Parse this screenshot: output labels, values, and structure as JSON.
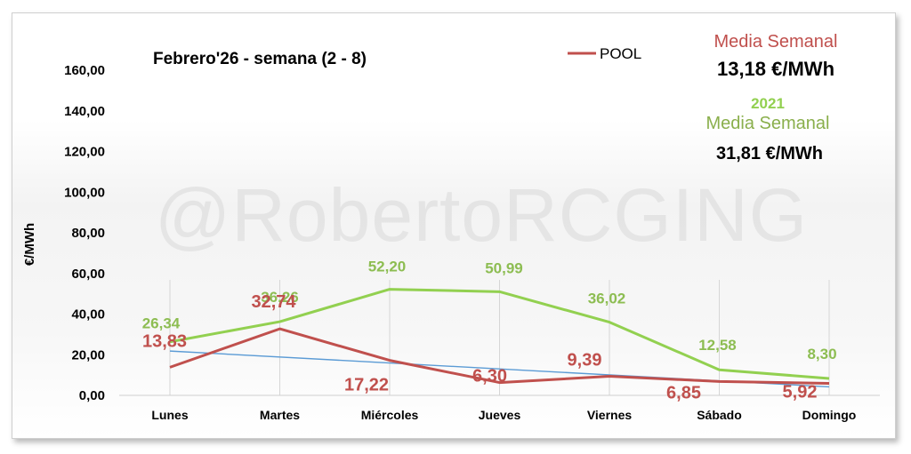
{
  "chart_data": {
    "type": "line",
    "title": "Febrero'26 - semana (2 - 8)",
    "ylabel": "€/MWh",
    "xlabel": "",
    "ylim": [
      0,
      160
    ],
    "yticks": [
      "0,00",
      "20,00",
      "40,00",
      "60,00",
      "80,00",
      "100,00",
      "120,00",
      "140,00",
      "160,00"
    ],
    "categories": [
      "Lunes",
      "Martes",
      "Miércoles",
      "Jueves",
      "Viernes",
      "Sábado",
      "Domingo"
    ],
    "legend_position": "top-center",
    "grid": "vertical",
    "series": [
      {
        "name": "POOL",
        "color": "#c0504d",
        "values": [
          13.83,
          32.74,
          17.22,
          6.3,
          9.39,
          6.85,
          5.92
        ],
        "labels": [
          "13,83",
          "32,74",
          "17,22",
          "6,30",
          "9,39",
          "6,85",
          "5,92"
        ]
      },
      {
        "name": "",
        "color": "#92d050",
        "values": [
          26.34,
          36.26,
          52.2,
          50.99,
          36.02,
          12.58,
          8.3
        ],
        "labels": [
          "26,34",
          "36,26",
          "52,20",
          "50,99",
          "36,02",
          "12,58",
          "8,30"
        ]
      }
    ],
    "trendline": {
      "color": "#5b9bd5",
      "start": 21.8,
      "end": 4.2
    },
    "annotations": {
      "media_label": "Media Semanal",
      "media_value": "13,18 €/MWh",
      "year": "2021",
      "media_label_2": "Media Semanal",
      "media_value_2": "31,81 €/MWh"
    },
    "watermark": "@RobertoRCGING"
  }
}
